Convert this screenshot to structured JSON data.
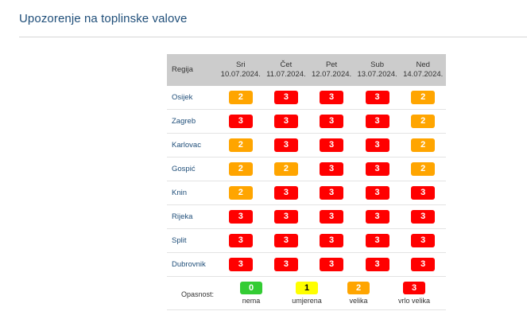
{
  "title": "Upozorenje na toplinske valove",
  "table": {
    "region_header": "Regija",
    "days": [
      {
        "name": "Sri",
        "date": "10.07.2024."
      },
      {
        "name": "Čet",
        "date": "11.07.2024."
      },
      {
        "name": "Pet",
        "date": "12.07.2024."
      },
      {
        "name": "Sub",
        "date": "13.07.2024."
      },
      {
        "name": "Ned",
        "date": "14.07.2024."
      }
    ],
    "rows": [
      {
        "region": "Osijek",
        "levels": [
          "2",
          "3",
          "3",
          "3",
          "2"
        ]
      },
      {
        "region": "Zagreb",
        "levels": [
          "3",
          "3",
          "3",
          "3",
          "2"
        ]
      },
      {
        "region": "Karlovac",
        "levels": [
          "2",
          "3",
          "3",
          "3",
          "2"
        ]
      },
      {
        "region": "Gospić",
        "levels": [
          "2",
          "2",
          "3",
          "3",
          "2"
        ]
      },
      {
        "region": "Knin",
        "levels": [
          "2",
          "3",
          "3",
          "3",
          "3"
        ]
      },
      {
        "region": "Rijeka",
        "levels": [
          "3",
          "3",
          "3",
          "3",
          "3"
        ]
      },
      {
        "region": "Split",
        "levels": [
          "3",
          "3",
          "3",
          "3",
          "3"
        ]
      },
      {
        "region": "Dubrovnik",
        "levels": [
          "3",
          "3",
          "3",
          "3",
          "3"
        ]
      }
    ]
  },
  "legend": {
    "label": "Opasnost:",
    "items": [
      {
        "level": "0",
        "text": "nema",
        "color": "#33cc33"
      },
      {
        "level": "1",
        "text": "umjerena",
        "color": "#ffff00"
      },
      {
        "level": "2",
        "text": "velika",
        "color": "#ffa500"
      },
      {
        "level": "3",
        "text": "vrlo velika",
        "color": "#ff0000"
      }
    ]
  },
  "level_colors": {
    "0": "#33cc33",
    "1": "#ffff00",
    "2": "#ffa500",
    "3": "#ff0000"
  }
}
